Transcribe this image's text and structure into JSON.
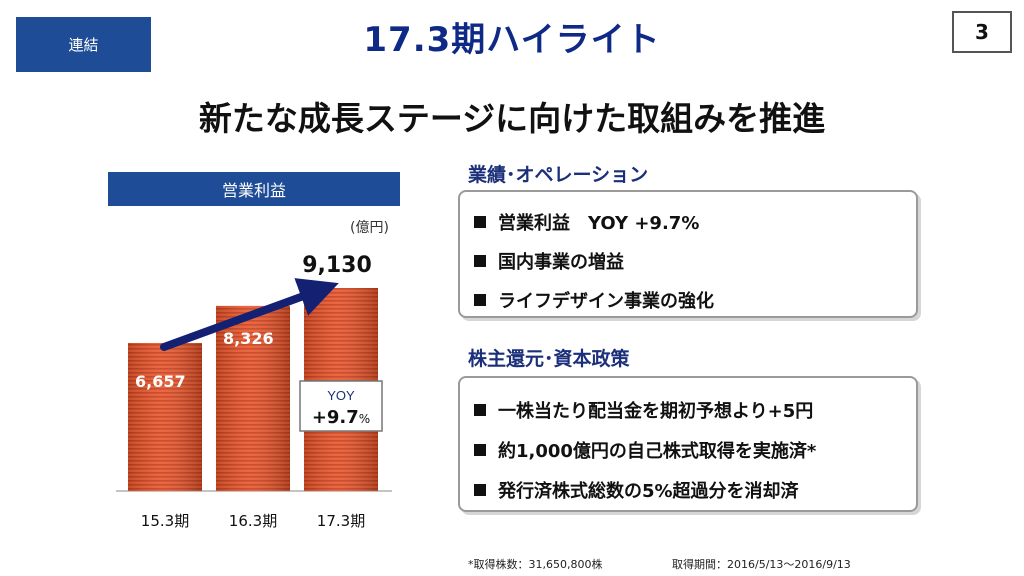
{
  "badge": "連結",
  "title": "17.3期ハイライト",
  "page_number": "3",
  "headline": "新たな成長ステージに向けた取組みを推進",
  "chart_header": "営業利益",
  "unit": "(億円)",
  "chart_data": {
    "type": "bar",
    "title": "営業利益",
    "ylabel": "(億円)",
    "categories": [
      "15.3期",
      "16.3期",
      "17.3期"
    ],
    "values": [
      6657,
      8326,
      9130
    ],
    "value_labels": [
      "6,657",
      "8,326",
      "9,130"
    ],
    "annotation": {
      "line1": "YOY",
      "value": "+9.7",
      "pct": "%"
    },
    "ylim": [
      0,
      9500
    ],
    "colors": {
      "bar": "#e4532a",
      "bar_dark": "#b8381a",
      "arrow": "#142173"
    }
  },
  "sections": {
    "performance": {
      "title": "業績･オペレーション",
      "items": [
        "営業利益　YOY +9.7%",
        "国内事業の増益",
        "ライフデザイン事業の強化"
      ]
    },
    "shareholder": {
      "title": "株主還元･資本政策",
      "items": [
        "一株当たり配当金を期初予想より+5円",
        "約1,000億円の自己株式取得を実施済*",
        "発行済株式総数の5%超過分を消却済"
      ]
    }
  },
  "footnotes": {
    "shares": "*取得株数：31,650,800株",
    "period": "取得期間：2016/5/13～2016/9/13"
  }
}
